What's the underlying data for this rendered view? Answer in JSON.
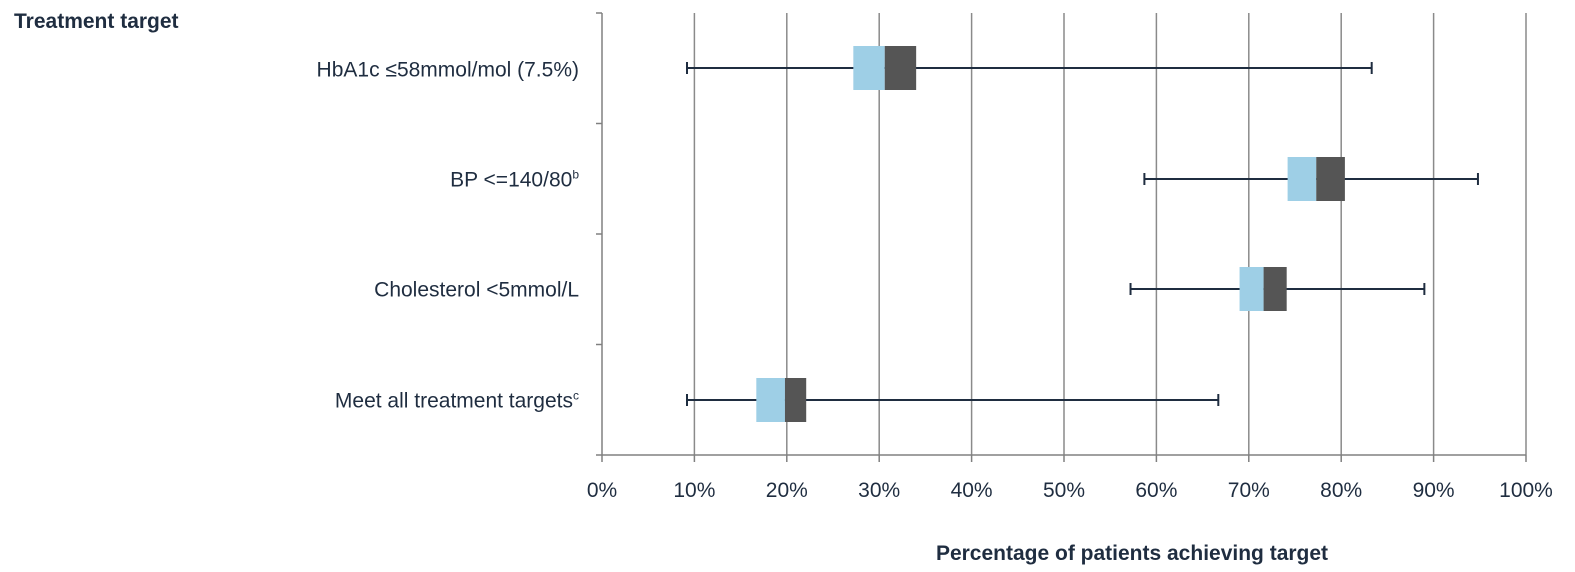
{
  "chart_data": {
    "type": "box",
    "orientation": "horizontal",
    "ylabel": "Treatment target",
    "xlabel": "Percentage of patients achieving target",
    "xlim": [
      0,
      100
    ],
    "x_ticks": [
      "0%",
      "10%",
      "20%",
      "30%",
      "40%",
      "50%",
      "60%",
      "70%",
      "80%",
      "90%",
      "100%"
    ],
    "grid": "vertical",
    "categories": [
      {
        "label": "HbA1c ≤58mmol/mol (7.5%)",
        "sup": "",
        "min": 9.2,
        "q1": 27.2,
        "median": 30.6,
        "q3": 34.0,
        "max": 83.3
      },
      {
        "label": "BP <=140/80",
        "sup": "b",
        "min": 58.7,
        "q1": 74.2,
        "median": 77.3,
        "q3": 80.4,
        "max": 94.8
      },
      {
        "label": "Cholesterol <5mmol/L",
        "sup": "",
        "min": 57.2,
        "q1": 69.0,
        "median": 71.6,
        "q3": 74.1,
        "max": 89.0
      },
      {
        "label": "Meet all treatment targets",
        "sup": "c",
        "min": 9.2,
        "q1": 16.7,
        "median": 19.8,
        "q3": 22.1,
        "max": 66.7
      }
    ],
    "colors": {
      "lower_box": "#9ecfe6",
      "upper_box": "#555555",
      "whisker": "#1f2d40",
      "grid": "#8a8a8a",
      "axis": "#808080"
    }
  }
}
